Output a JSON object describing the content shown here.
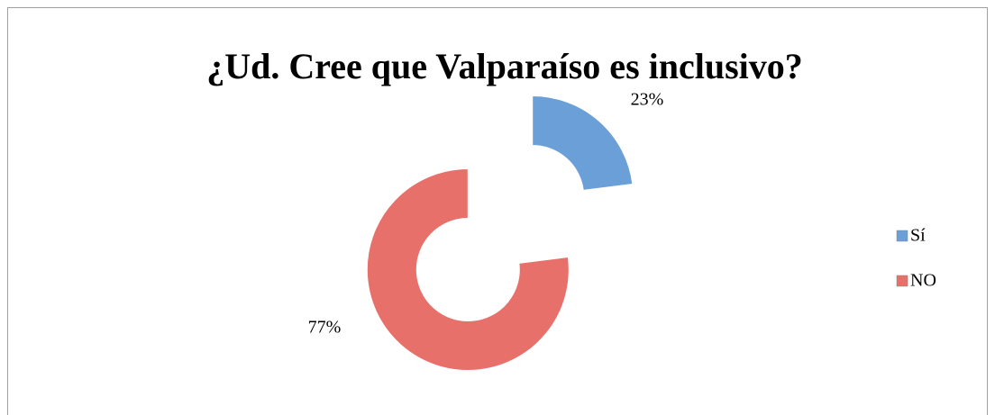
{
  "chart_data": {
    "type": "doughnut",
    "title": "¿Ud. Cree que Valparaíso es inclusivo?",
    "categories": [
      "Sí",
      "NO"
    ],
    "values": [
      23,
      77
    ],
    "value_labels": [
      "23%",
      "77%"
    ],
    "colors": [
      "#6a9fd8",
      "#e8706b"
    ],
    "legend": "right",
    "exploded": true
  }
}
